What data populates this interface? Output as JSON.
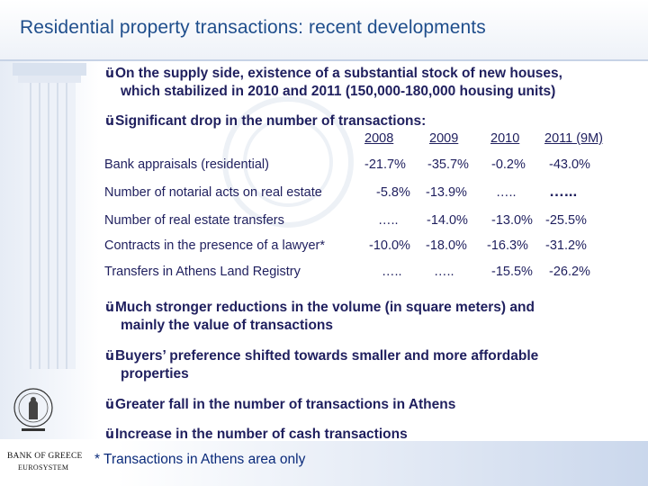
{
  "title": "Residential property transactions: recent developments",
  "bullets": {
    "b1_line1": "On the supply side, existence of a substantial stock of new houses,",
    "b1_line2": "which stabilized in 2010 and 2011 (150,000-180,000 housing units)",
    "b2": "Significant drop in the number of transactions:",
    "b3_line1": "Much stronger reductions in the volume (in square meters) and",
    "b3_line2": "mainly the value of transactions",
    "b4_line1": "Buyers’ preference shifted towards smaller and more affordable",
    "b4_line2": "properties",
    "b5": "Greater fall in the number of transactions in Athens",
    "b6": "Increase in the number of cash transactions"
  },
  "check_mark": "ü",
  "table": {
    "headers": [
      "2008",
      "2009",
      "2010",
      "2011 (9M)"
    ],
    "rows": [
      {
        "label": "Bank appraisals (residential)",
        "values": [
          "-21.7%",
          "-35.7%",
          "-0.2%",
          "-43.0%"
        ]
      },
      {
        "label": "Number of notarial acts on real estate",
        "values": [
          "-5.8%",
          "-13.9%",
          "…..",
          "…..."
        ]
      },
      {
        "label": "Number of real estate transfers",
        "values": [
          "…..",
          "-14.0%",
          "-13.0%",
          "-25.5%"
        ]
      },
      {
        "label": "Contracts in the presence of a lawyer*",
        "values": [
          "-10.0%",
          "-18.0%",
          "-16.3%",
          "-31.2%"
        ]
      },
      {
        "label": "Transfers in Athens Land Registry",
        "values": [
          "…..",
          "…..",
          "-15.5%",
          "-26.2%"
        ]
      }
    ]
  },
  "footnote": "* Transactions in Athens area only",
  "bank": {
    "name": "BANK OF GREECE",
    "sub": "EUROSYSTEM"
  },
  "colors": {
    "title": "#1f4e8c",
    "text": "#1f1f5e",
    "footnote": "#0a2a7a"
  }
}
